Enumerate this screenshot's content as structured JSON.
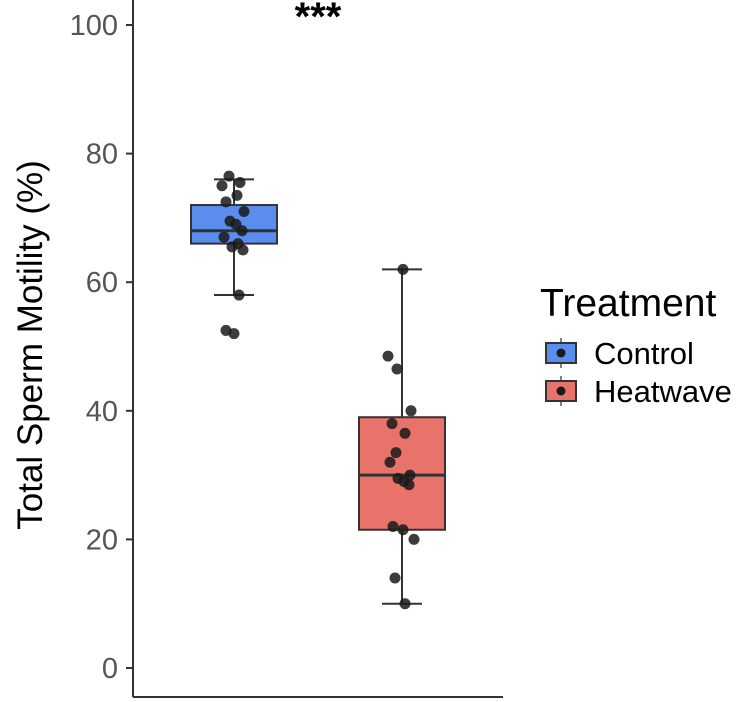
{
  "chart_data": {
    "type": "box",
    "title": "",
    "xlabel": "",
    "ylabel": "Total Sperm Motility (%)",
    "ylim": [
      0,
      100
    ],
    "yticks": [
      0,
      20,
      40,
      60,
      80,
      100
    ],
    "grid": false,
    "legend": {
      "title": "Treatment",
      "position": "right"
    },
    "significance": "***",
    "series": [
      {
        "name": "Control",
        "color": "#5b8def",
        "q1": 66,
        "median": 68,
        "q3": 72,
        "whisker_low": 58,
        "whisker_high": 76,
        "points": [
          76.5,
          75.5,
          75,
          73.5,
          72.5,
          71,
          69.5,
          69,
          68,
          67,
          66,
          65.5,
          65,
          58,
          52.5,
          52
        ]
      },
      {
        "name": "Heatwave",
        "color": "#e8736a",
        "q1": 21.5,
        "median": 30,
        "q3": 39,
        "whisker_low": 10,
        "whisker_high": 62,
        "points": [
          62,
          48.5,
          46.5,
          40,
          38,
          36.5,
          33.5,
          32,
          30,
          29.5,
          29,
          28.5,
          22,
          21.5,
          20,
          14,
          10
        ]
      }
    ]
  }
}
